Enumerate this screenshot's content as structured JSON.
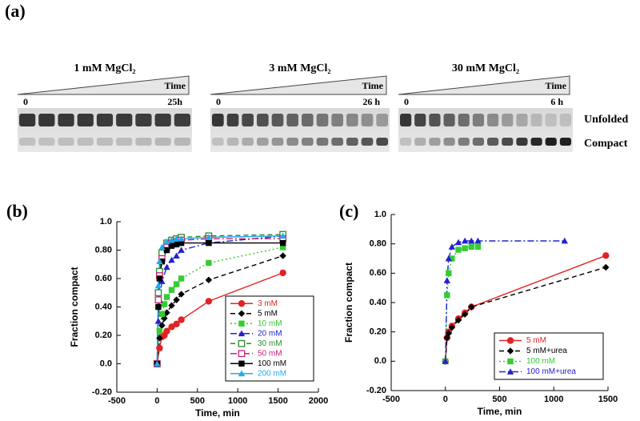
{
  "gel_panel": {
    "panel_label": "(a)",
    "gels": [
      {
        "title": "1 mM MgCl₂",
        "axis_label": "Time",
        "start": "0",
        "end": "25h"
      },
      {
        "title": "3 mM MgCl₂",
        "axis_label": "Time",
        "start": "0",
        "end": "26 h"
      },
      {
        "title": "30 mM MgCl₂",
        "axis_label": "Time",
        "start": "0",
        "end": "6 h"
      }
    ],
    "band_labels": [
      "Unfolded",
      "Compact"
    ]
  },
  "chart_data": [
    {
      "type": "scatter",
      "panel_label": "(b)",
      "x_label": "Time, min",
      "y_label": "Fraction compact",
      "xlim": [
        -500,
        2000
      ],
      "xticks": [
        -500,
        0,
        500,
        1000,
        1500,
        2000
      ],
      "ylim": [
        -0.2,
        1.0
      ],
      "yticks": [
        {
          "value": -0.2,
          "label": "-0.20"
        },
        {
          "value": 0,
          "label": "0.0"
        },
        {
          "value": 0.2,
          "label": "0.20"
        },
        {
          "value": 0.4,
          "label": "0.40"
        },
        {
          "value": 0.6,
          "label": "0.60"
        },
        {
          "value": 0.8,
          "label": "0.80"
        },
        {
          "value": 1.0,
          "label": "1.0"
        }
      ],
      "legend": "lower right",
      "series": [
        {
          "name": "3 mM",
          "color": "#e02424",
          "marker": "circle",
          "dash": "solid",
          "x": [
            0,
            30,
            60,
            90,
            120,
            180,
            240,
            300,
            640,
            1560
          ],
          "values": [
            0.0,
            0.11,
            0.19,
            0.2,
            0.23,
            0.26,
            0.28,
            0.31,
            0.44,
            0.64
          ]
        },
        {
          "name": "5 mM",
          "color": "#000000",
          "marker": "diamond",
          "dash": "dash",
          "x": [
            0,
            30,
            60,
            90,
            120,
            180,
            240,
            300,
            640,
            1560
          ],
          "values": [
            0.0,
            0.18,
            0.27,
            0.32,
            0.36,
            0.41,
            0.45,
            0.49,
            0.59,
            0.76
          ]
        },
        {
          "name": "10 mM",
          "color": "#33cc33",
          "marker": "square",
          "dash": "dot",
          "x": [
            0,
            30,
            60,
            90,
            120,
            180,
            240,
            300,
            640,
            1560
          ],
          "values": [
            0.0,
            0.23,
            0.35,
            0.42,
            0.47,
            0.52,
            0.56,
            0.6,
            0.71,
            0.82
          ]
        },
        {
          "name": "20 mM",
          "color": "#2222cc",
          "marker": "triangle",
          "dash": "dashdot",
          "x": [
            0,
            15,
            30,
            60,
            120,
            180,
            240,
            300,
            640,
            1560
          ],
          "values": [
            0.0,
            0.3,
            0.45,
            0.58,
            0.68,
            0.73,
            0.76,
            0.8,
            0.85,
            0.9
          ]
        },
        {
          "name": "30 mM",
          "color": "#2a8a2a",
          "marker": "square-open",
          "dash": "dash",
          "x": [
            0,
            15,
            30,
            60,
            120,
            180,
            240,
            300,
            640,
            1560
          ],
          "values": [
            0.0,
            0.5,
            0.65,
            0.78,
            0.85,
            0.87,
            0.88,
            0.89,
            0.9,
            0.91
          ]
        },
        {
          "name": "50 mM",
          "color": "#cc2277",
          "marker": "square-open",
          "dash": "dashdot",
          "x": [
            0,
            15,
            30,
            60,
            120,
            180,
            240,
            300,
            640,
            1560
          ],
          "values": [
            0.0,
            0.45,
            0.62,
            0.74,
            0.82,
            0.85,
            0.86,
            0.87,
            0.88,
            0.88
          ]
        },
        {
          "name": "100 mM",
          "color": "#000000",
          "marker": "square",
          "dash": "solid",
          "x": [
            0,
            15,
            30,
            60,
            120,
            180,
            240,
            300,
            640,
            1560
          ],
          "values": [
            0.0,
            0.4,
            0.6,
            0.72,
            0.8,
            0.83,
            0.84,
            0.85,
            0.85,
            0.85
          ]
        },
        {
          "name": "200 mM",
          "color": "#22aaee",
          "marker": "triangle",
          "dash": "solid",
          "x": [
            0,
            15,
            30,
            60,
            120,
            180,
            240,
            300,
            640,
            1560
          ],
          "values": [
            0.0,
            0.55,
            0.72,
            0.82,
            0.86,
            0.87,
            0.88,
            0.88,
            0.89,
            0.9
          ]
        }
      ]
    },
    {
      "type": "scatter",
      "panel_label": "(c)",
      "x_label": "Time, min",
      "y_label": "Fraction compact",
      "xlim": [
        -500,
        1500
      ],
      "xticks": [
        -500,
        0,
        500,
        1000,
        1500
      ],
      "ylim": [
        -0.2,
        1.0
      ],
      "yticks": [
        {
          "value": -0.2,
          "label": "-0.20"
        },
        {
          "value": 0,
          "label": "0.0"
        },
        {
          "value": 0.2,
          "label": "0.20"
        },
        {
          "value": 0.4,
          "label": "0.40"
        },
        {
          "value": 0.6,
          "label": "0.60"
        },
        {
          "value": 0.8,
          "label": "0.80"
        },
        {
          "value": 1.0,
          "label": "1.0"
        }
      ],
      "legend": "lower right",
      "series": [
        {
          "name": "5 mM",
          "color": "#e02424",
          "marker": "circle",
          "dash": "solid",
          "x": [
            0,
            15,
            30,
            60,
            120,
            180,
            240,
            1480
          ],
          "values": [
            0.0,
            0.16,
            0.2,
            0.24,
            0.29,
            0.33,
            0.37,
            0.72
          ]
        },
        {
          "name": "5 mM+urea",
          "color": "#000000",
          "marker": "diamond",
          "dash": "dash",
          "x": [
            0,
            15,
            30,
            60,
            120,
            180,
            240,
            1480
          ],
          "values": [
            0.0,
            0.16,
            0.19,
            0.23,
            0.28,
            0.32,
            0.37,
            0.64
          ]
        },
        {
          "name": "100 mM",
          "color": "#33cc33",
          "marker": "square",
          "dash": "dot",
          "x": [
            0,
            15,
            30,
            60,
            120,
            180,
            240,
            300
          ],
          "values": [
            0.0,
            0.45,
            0.6,
            0.7,
            0.76,
            0.77,
            0.78,
            0.78
          ]
        },
        {
          "name": "100 mM+urea",
          "color": "#2222cc",
          "marker": "triangle",
          "dash": "dashdot",
          "x": [
            0,
            15,
            30,
            60,
            120,
            180,
            240,
            300,
            1100
          ],
          "values": [
            0.0,
            0.55,
            0.7,
            0.78,
            0.81,
            0.82,
            0.82,
            0.82,
            0.82
          ]
        }
      ]
    }
  ]
}
